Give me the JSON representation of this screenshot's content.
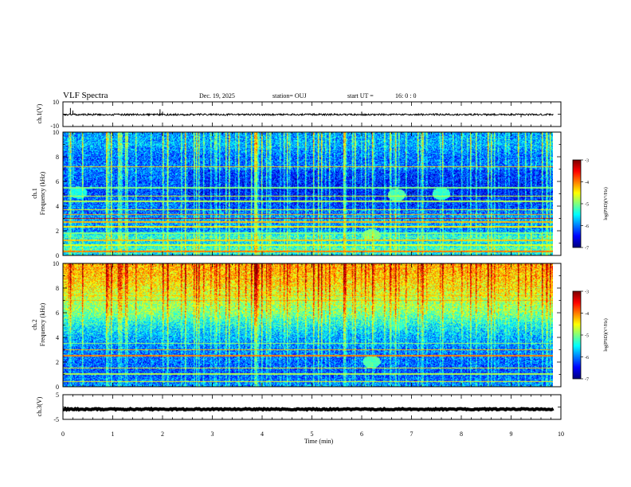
{
  "header": {
    "title": "VLF Spectra",
    "date": "Dec. 19, 2025",
    "station": "station= OUJ",
    "start_ut_label": "start  UT  =",
    "start_ut_value": "16: 0  : 0"
  },
  "chart_data": [
    {
      "type": "line",
      "name": "ch1-voltage",
      "ylabel": "ch.1(V)",
      "ylim": [
        -10,
        10
      ],
      "yticks": [
        "10",
        "-10"
      ],
      "xlim": [
        0,
        9.85
      ],
      "baseline": -0.3,
      "noise_amplitude": 0.7,
      "spikes": [
        {
          "t": 0.15,
          "v": 5
        },
        {
          "t": 0.2,
          "v": 3
        },
        {
          "t": 1.95,
          "v": 4
        },
        {
          "t": 2.0,
          "v": 2
        },
        {
          "t": 6.0,
          "v": 2
        },
        {
          "t": 9.2,
          "v": -2.5
        }
      ]
    },
    {
      "type": "heatmap",
      "name": "ch1-spectrogram",
      "ylabel": "ch.1",
      "ylabel2": "Frequency  (kHz)",
      "ylim": [
        0,
        10
      ],
      "yticks": [
        "0",
        "2",
        "4",
        "6",
        "8",
        "10"
      ],
      "xlim": [
        0,
        9.85
      ],
      "color_scale": {
        "min": -7,
        "max": -3,
        "ticks": [
          "-3",
          "-4",
          "-5",
          "-6",
          "-7"
        ],
        "label": "log(PSD)(V²/Hz)"
      },
      "base_profile": [
        {
          "f": 0,
          "v": -5.6
        },
        {
          "f": 0.5,
          "v": -5.2
        },
        {
          "f": 1.0,
          "v": -5.6
        },
        {
          "f": 1.5,
          "v": -5.3
        },
        {
          "f": 2.0,
          "v": -6.0
        },
        {
          "f": 2.5,
          "v": -5.9
        },
        {
          "f": 3.0,
          "v": -5.8
        },
        {
          "f": 3.5,
          "v": -6.1
        },
        {
          "f": 4.0,
          "v": -6.0
        },
        {
          "f": 5.0,
          "v": -6.2
        },
        {
          "f": 6.0,
          "v": -6.1
        },
        {
          "f": 7.0,
          "v": -6.0
        },
        {
          "f": 8.0,
          "v": -6.1
        },
        {
          "f": 9.0,
          "v": -5.8
        },
        {
          "f": 10.0,
          "v": -5.9
        }
      ],
      "lines": [
        {
          "f": 0.3,
          "v": -4.0
        },
        {
          "f": 0.8,
          "v": -4.6
        },
        {
          "f": 1.2,
          "v": -4.3
        },
        {
          "f": 1.8,
          "v": -5.0
        },
        {
          "f": 2.3,
          "v": -4.4
        },
        {
          "f": 2.7,
          "v": -4.2
        },
        {
          "f": 3.0,
          "v": -3.3
        },
        {
          "f": 3.3,
          "v": -4.1
        },
        {
          "f": 3.7,
          "v": -4.5
        },
        {
          "f": 4.4,
          "v": -4.8
        },
        {
          "f": 4.8,
          "v": -4.6
        },
        {
          "f": 5.5,
          "v": -5.0
        },
        {
          "f": 7.2,
          "v": -4.3
        }
      ],
      "blobs": [
        {
          "t": 6.2,
          "f": 1.6,
          "v": -5.0
        },
        {
          "t": 6.7,
          "f": 4.9,
          "v": -5.2
        },
        {
          "t": 7.6,
          "f": 5.0,
          "v": -5.3
        },
        {
          "t": 0.3,
          "f": 5.1,
          "v": -5.4
        }
      ]
    },
    {
      "type": "heatmap",
      "name": "ch2-spectrogram",
      "ylabel": "ch.2",
      "ylabel2": "Frequency  (kHz)",
      "ylim": [
        0,
        10
      ],
      "yticks": [
        "0",
        "2",
        "4",
        "6",
        "8",
        "10"
      ],
      "xlim": [
        0,
        9.85
      ],
      "color_scale": {
        "min": -7,
        "max": -3,
        "ticks": [
          "-3",
          "-4",
          "-5",
          "-6",
          "-7"
        ],
        "label": "log(PSD)(V²/Hz)"
      },
      "base_profile": [
        {
          "f": 0,
          "v": -5.9
        },
        {
          "f": 1.0,
          "v": -6.2
        },
        {
          "f": 2.0,
          "v": -6.1
        },
        {
          "f": 3.0,
          "v": -6.0
        },
        {
          "f": 4.0,
          "v": -5.8
        },
        {
          "f": 5.0,
          "v": -5.5
        },
        {
          "f": 6.0,
          "v": -5.0
        },
        {
          "f": 7.0,
          "v": -4.8
        },
        {
          "f": 8.0,
          "v": -4.5
        },
        {
          "f": 9.0,
          "v": -4.3
        },
        {
          "f": 10.0,
          "v": -4.2
        }
      ],
      "lines": [
        {
          "f": 0.4,
          "v": -4.5
        },
        {
          "f": 1.0,
          "v": -4.8
        },
        {
          "f": 1.5,
          "v": -4.5
        },
        {
          "f": 2.5,
          "v": -4.0
        },
        {
          "f": 3.0,
          "v": -4.2
        },
        {
          "f": 3.5,
          "v": -4.9
        },
        {
          "f": 7.0,
          "v": -4.2
        },
        {
          "f": 7.4,
          "v": -4.3
        }
      ],
      "blobs": [
        {
          "t": 6.2,
          "f": 2.0,
          "v": -5.2
        },
        {
          "t": 6.7,
          "f": 5.0,
          "v": -5.4
        }
      ]
    },
    {
      "type": "line",
      "name": "ch3-voltage",
      "ylabel": "ch.3(V)",
      "ylim": [
        -5,
        5
      ],
      "yticks": [
        "5",
        "-5"
      ],
      "xlim": [
        0,
        9.85
      ],
      "baseline": -0.9,
      "noise_amplitude": 0.25
    }
  ],
  "xaxis": {
    "label": "Time  (min)",
    "ticks": [
      "0",
      "1",
      "2",
      "3",
      "4",
      "5",
      "6",
      "7",
      "8",
      "9",
      "10"
    ],
    "range": [
      0,
      10
    ]
  }
}
